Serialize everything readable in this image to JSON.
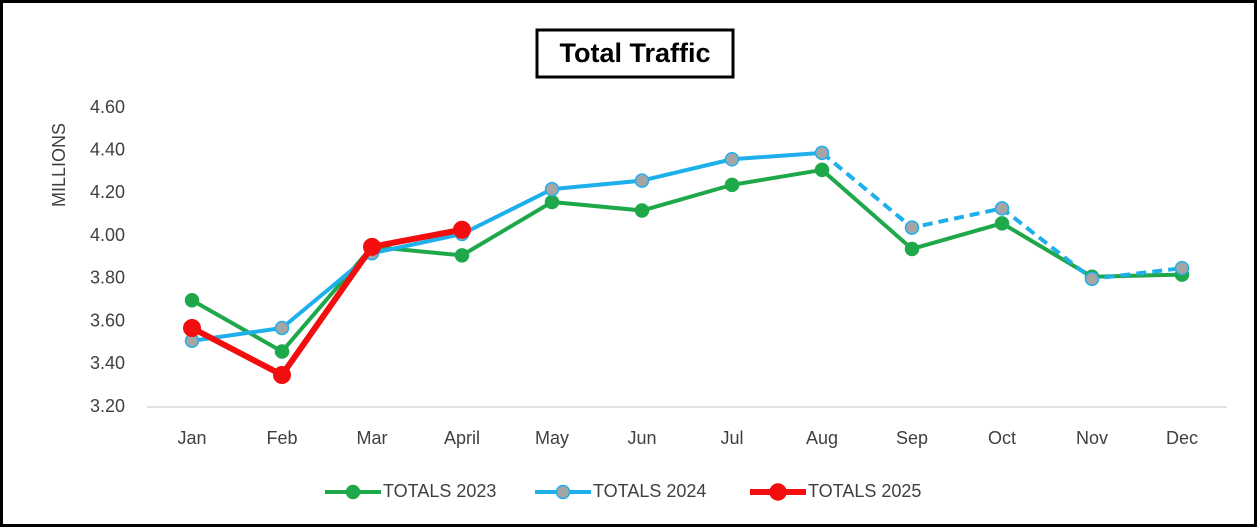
{
  "chart_data": {
    "type": "line",
    "title": "Total Traffic",
    "y_label": "MILLIONS",
    "categories": [
      "Jan",
      "Feb",
      "Mar",
      "April",
      "May",
      "Jun",
      "Jul",
      "Aug",
      "Sep",
      "Oct",
      "Nov",
      "Dec"
    ],
    "series": [
      {
        "name": "TOTALS 2023",
        "color": "#1ea84a",
        "marker_fill": "#1ea84a",
        "values": [
          3.7,
          3.46,
          3.95,
          3.91,
          4.16,
          4.12,
          4.24,
          4.31,
          3.94,
          4.06,
          3.81,
          3.82
        ]
      },
      {
        "name": "TOTALS 2024",
        "color": "#1fb0ec",
        "marker_fill": "#a5a5a5",
        "dashed_from": "Aug",
        "values": [
          3.51,
          3.57,
          3.92,
          4.01,
          4.22,
          4.26,
          4.36,
          4.39,
          4.04,
          4.13,
          3.8,
          3.85
        ]
      },
      {
        "name": "TOTALS 2025",
        "color": "#f20e0e",
        "marker_fill": "#f20e0e",
        "bold": true,
        "values": [
          3.57,
          3.35,
          3.95,
          4.03,
          null,
          null,
          null,
          null,
          null,
          null,
          null,
          null
        ]
      }
    ],
    "ylim": [
      3.2,
      4.6
    ],
    "yticks": [
      {
        "value": 3.2,
        "label": "3.20"
      },
      {
        "value": 3.4,
        "label": "3.40"
      },
      {
        "value": 3.6,
        "label": "3.60"
      },
      {
        "value": 3.8,
        "label": "3.80"
      },
      {
        "value": 4.0,
        "label": "4.00"
      },
      {
        "value": 4.2,
        "label": "4.20"
      },
      {
        "value": 4.4,
        "label": "4.40"
      },
      {
        "value": 4.6,
        "label": "4.60"
      }
    ],
    "grid": false,
    "legend": "bottom"
  }
}
